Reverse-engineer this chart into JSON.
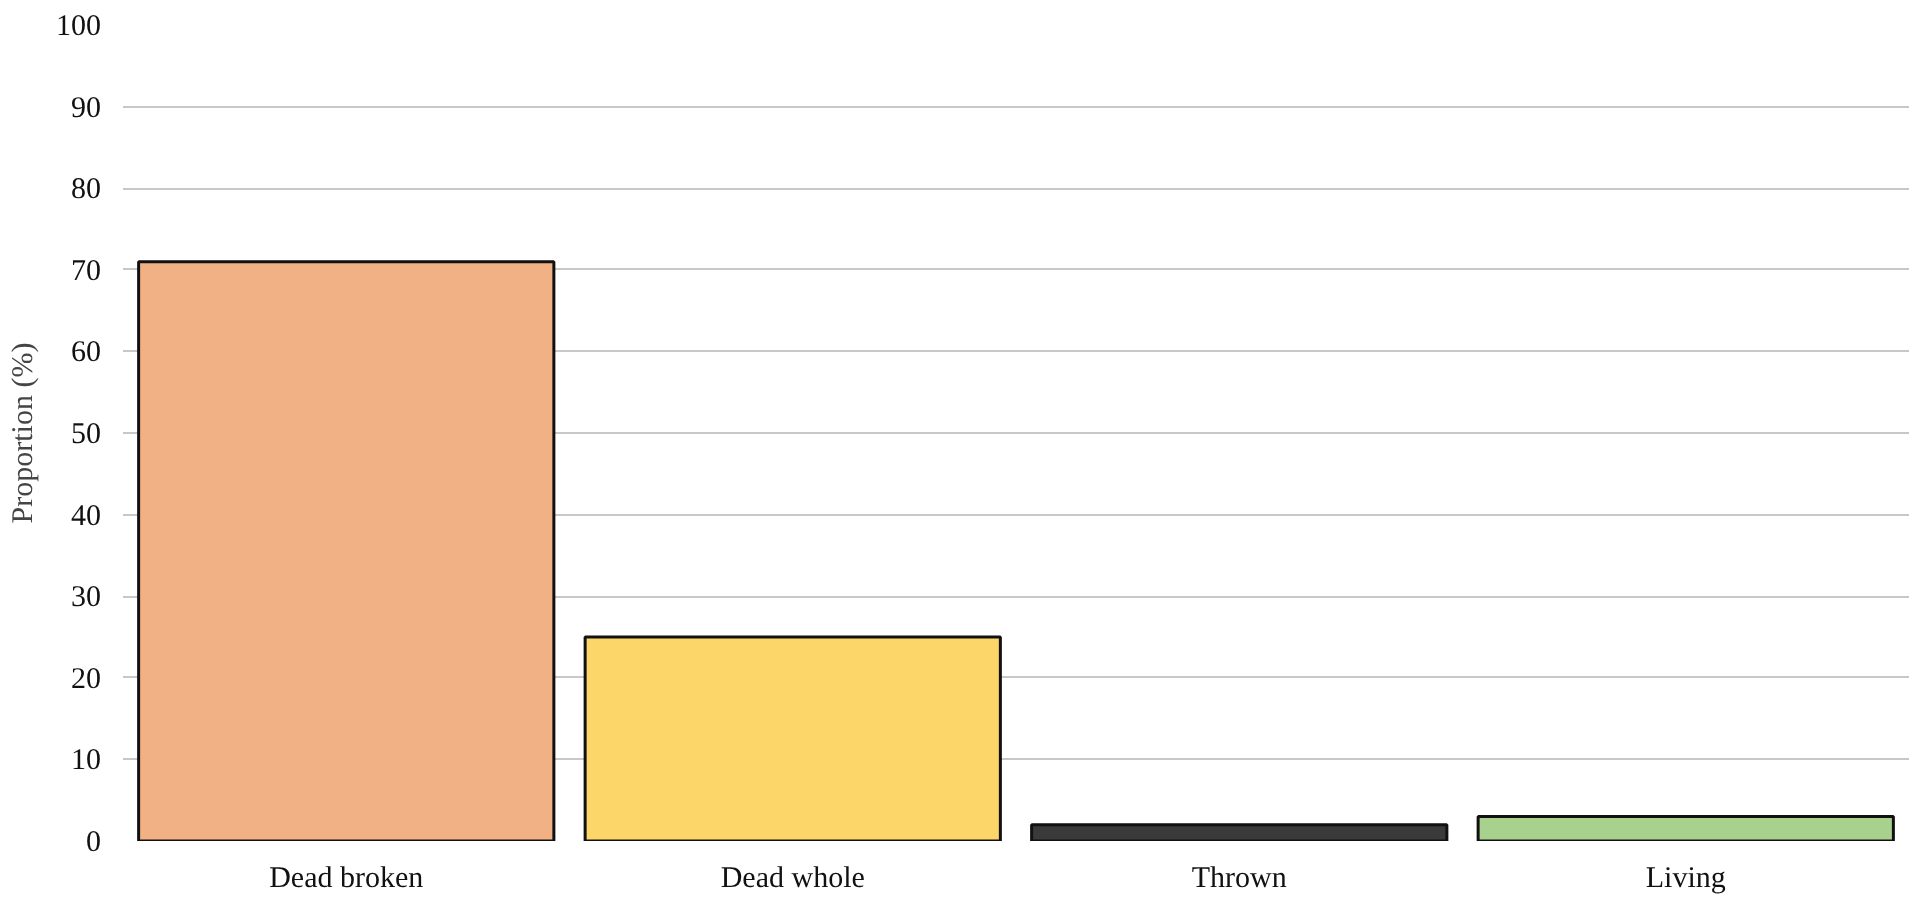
{
  "chart_data": {
    "type": "bar",
    "ylabel": "Proportion (%)",
    "categories": [
      "Dead broken",
      "Dead whole",
      "Thrown",
      "Living"
    ],
    "values": [
      71,
      25,
      2,
      3
    ],
    "colors": [
      "#f2b085",
      "#fdd66a",
      "#3a3a3a",
      "#a8d18e"
    ],
    "ylim": [
      0,
      100
    ],
    "yticks": [
      0,
      10,
      20,
      30,
      40,
      50,
      60,
      70,
      80,
      90,
      100
    ],
    "grid": "y"
  }
}
